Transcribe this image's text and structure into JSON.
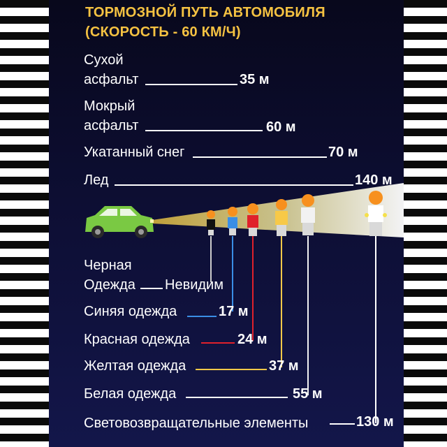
{
  "title": {
    "line1": "ТОРМОЗНОЙ ПУТЬ АВТОМОБИЛЯ",
    "line2": "(СКОРОСТЬ - 60 КМ/Ч)"
  },
  "surfaces": [
    {
      "label_line1": "Сухой",
      "label_line2": "асфальт",
      "value": "35 м"
    },
    {
      "label_line1": "Мокрый",
      "label_line2": "асфальт",
      "value": "60 м"
    },
    {
      "label": "Укатанный снег",
      "value": "70 м"
    },
    {
      "label": "Лед",
      "value": "140 м"
    }
  ],
  "clothing": [
    {
      "label_line1": "Черная",
      "label_line2": "Одежда",
      "value": "Невидим",
      "color": "#111111"
    },
    {
      "label": "Синяя одежда",
      "value": "17 м",
      "color": "#3a8ee6"
    },
    {
      "label": "Красная одежда",
      "value": "24 м",
      "color": "#e0212b"
    },
    {
      "label": "Желтая одежда",
      "value": "37 м",
      "color": "#f7c948"
    },
    {
      "label": "Белая одежда",
      "value": "55 м",
      "color": "#f2f2f2"
    },
    {
      "label": "Световозвращательные элементы",
      "value": "130 м",
      "color": "#ffffff"
    }
  ],
  "colors": {
    "title": "#f5c242",
    "car": "#7ac943",
    "beam": "#fff6b0",
    "head": "#f7901e"
  }
}
